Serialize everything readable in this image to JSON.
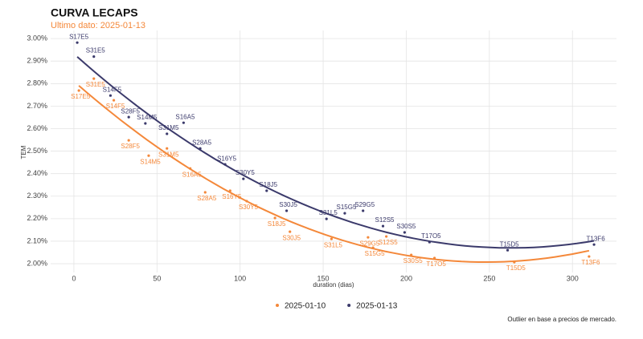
{
  "chart_data": {
    "type": "scatter",
    "title": "CURVA LECAPS",
    "subtitle": "Ultimo dato: 2025-01-13",
    "x_label": "duration (dias)",
    "y_label": "TEM",
    "caption": "Outlier en base a precios de mercado.",
    "xlim": [
      -14,
      326.5
    ],
    "ylim": [
      1.961,
      3.036
    ],
    "xticks": [
      0,
      50,
      100,
      150,
      200,
      250,
      300
    ],
    "yticks": [
      {
        "value": 2.0,
        "label": "2.00%"
      },
      {
        "value": 2.1,
        "label": "2.10%"
      },
      {
        "value": 2.2,
        "label": "2.20%"
      },
      {
        "value": 2.3,
        "label": "2.30%"
      },
      {
        "value": 2.4,
        "label": "2.40%"
      },
      {
        "value": 2.5,
        "label": "2.50%"
      },
      {
        "value": 2.6,
        "label": "2.60%"
      },
      {
        "value": 2.7,
        "label": "2.70%"
      },
      {
        "value": 2.8,
        "label": "2.80%"
      },
      {
        "value": 2.9,
        "label": "2.90%"
      },
      {
        "value": 3.0,
        "label": "3.00%"
      }
    ],
    "grid": true,
    "trend": true,
    "legend": "bottom",
    "series": [
      {
        "name": "2025-01-10",
        "color": "#f4883a",
        "labels": [
          "S17E5",
          "S31E5",
          "S14F5",
          "S28F5",
          "S14M5",
          "S31M5",
          "S16A5",
          "S28A5",
          "S16Y5",
          "S30Y5",
          "S18J5",
          "S30J5",
          "S31L5",
          "S29G5",
          "S15G5",
          "S12S5",
          "S30S5",
          "T17O5",
          "T15D5",
          "T13F6"
        ],
        "x": [
          3,
          12,
          24,
          33,
          45,
          56,
          70,
          79,
          94,
          104,
          121,
          130,
          155,
          177,
          180,
          188,
          203,
          217,
          265,
          310
        ],
        "values": [
          2.769,
          2.822,
          2.726,
          2.548,
          2.48,
          2.512,
          2.423,
          2.317,
          2.324,
          2.278,
          2.203,
          2.142,
          2.11,
          2.117,
          2.071,
          2.121,
          2.039,
          2.025,
          2.007,
          2.032
        ]
      },
      {
        "name": "2025-01-13",
        "color": "#3b3a6b",
        "labels": [
          "S17E5",
          "S31E5",
          "S14F5",
          "S28F5",
          "S14M5",
          "S31M5",
          "S16A5",
          "S28A5",
          "S16Y5",
          "S30Y5",
          "S18J5",
          "S30J5",
          "S31L5",
          "S15G5",
          "S29G5",
          "S12S5",
          "S30S5",
          "T17O5",
          "T15D5",
          "T13F6"
        ],
        "x": [
          2,
          12,
          22,
          33,
          43,
          56,
          66,
          76,
          91,
          102,
          116,
          128,
          152,
          163,
          174,
          186,
          199,
          214,
          261,
          313
        ],
        "values": [
          2.982,
          2.92,
          2.747,
          2.651,
          2.623,
          2.577,
          2.626,
          2.512,
          2.441,
          2.377,
          2.324,
          2.235,
          2.199,
          2.224,
          2.235,
          2.167,
          2.139,
          2.096,
          2.06,
          2.085
        ]
      }
    ]
  }
}
